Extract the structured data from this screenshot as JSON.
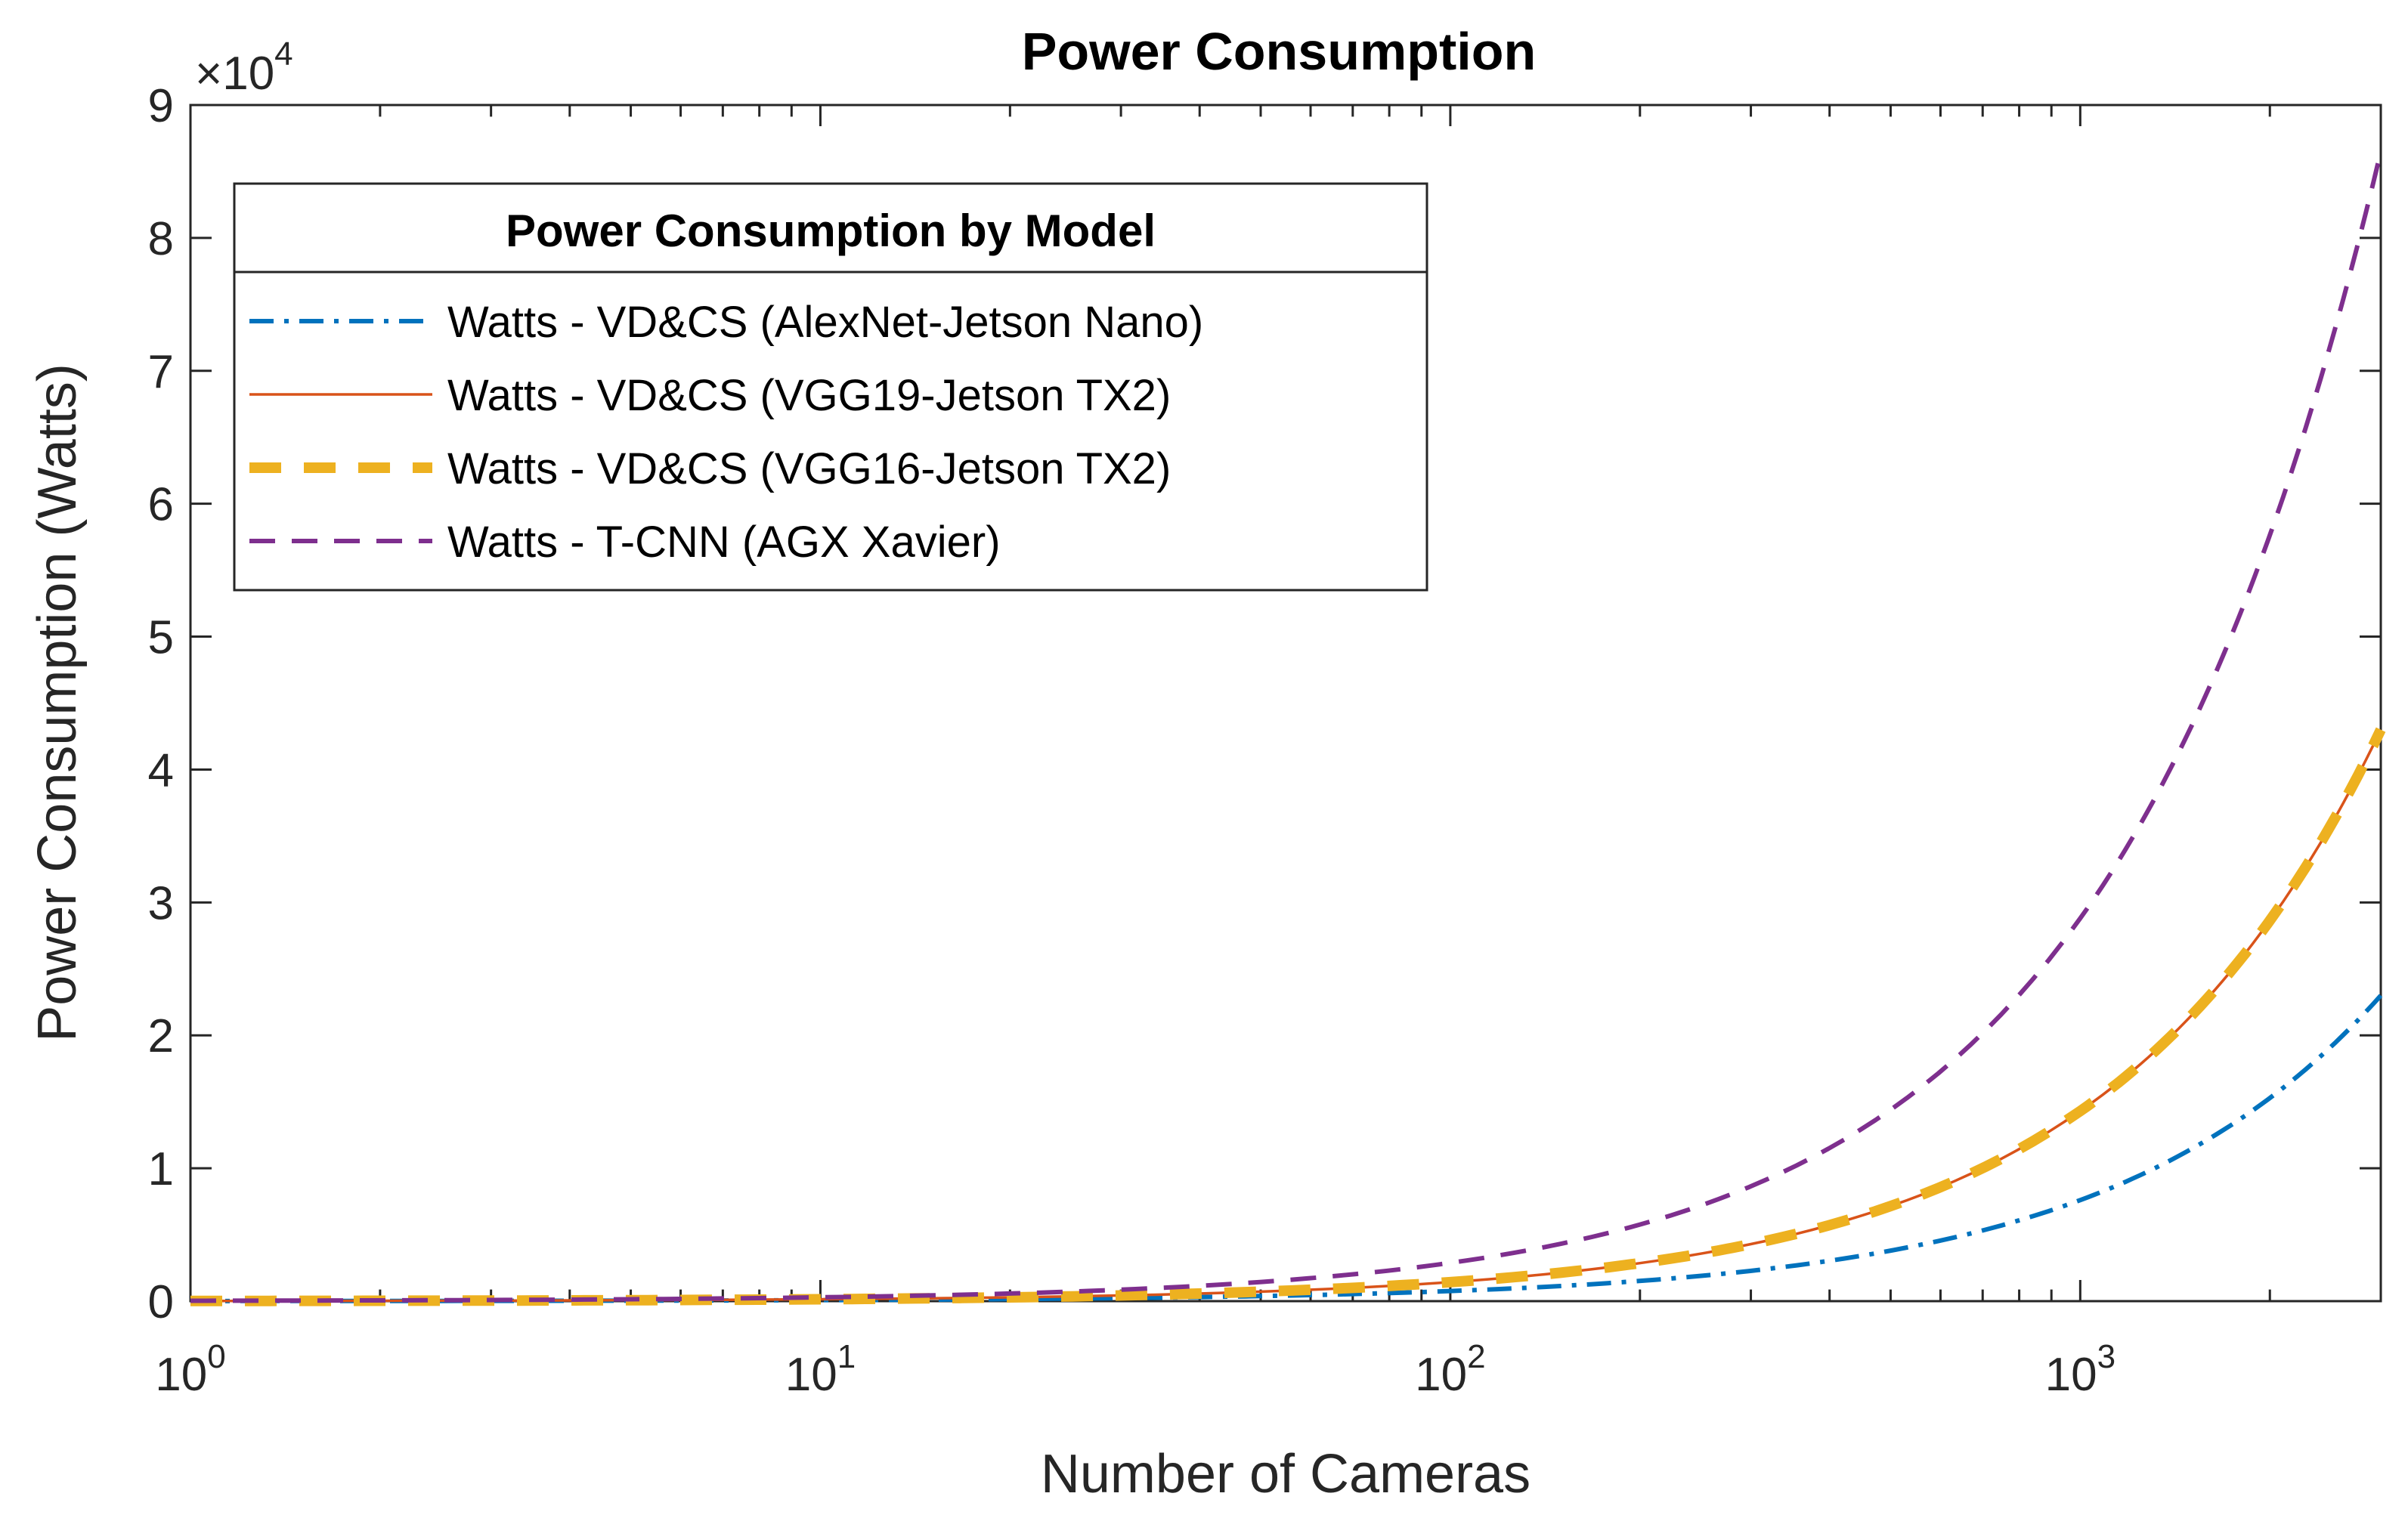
{
  "chart_data": {
    "type": "line",
    "title": "Power Consumption",
    "xlabel": "Number of Cameras",
    "ylabel": "Power Consumption (Watts)",
    "x_scale": "log",
    "xlim": [
      1,
      3000
    ],
    "ylim": [
      0,
      90000
    ],
    "y_multiplier_label": {
      "base": "×10",
      "exponent": "4"
    },
    "x_ticks": [
      {
        "value": 1,
        "base": "10",
        "exponent": "0"
      },
      {
        "value": 10,
        "base": "10",
        "exponent": "1"
      },
      {
        "value": 100,
        "base": "10",
        "exponent": "2"
      },
      {
        "value": 1000,
        "base": "10",
        "exponent": "3"
      }
    ],
    "y_ticks": [
      {
        "value": 0,
        "label": "0"
      },
      {
        "value": 10000,
        "label": "1"
      },
      {
        "value": 20000,
        "label": "2"
      },
      {
        "value": 30000,
        "label": "3"
      },
      {
        "value": 40000,
        "label": "4"
      },
      {
        "value": 50000,
        "label": "5"
      },
      {
        "value": 60000,
        "label": "6"
      },
      {
        "value": 70000,
        "label": "7"
      },
      {
        "value": 80000,
        "label": "8"
      },
      {
        "value": 90000,
        "label": "9"
      }
    ],
    "grid": false,
    "legend": {
      "title": "Power Consumption by Model",
      "placement": "top-left"
    },
    "series": [
      {
        "name": "Watts - VD&CS (AlexNet-Jetson Nano)",
        "color": "#0072BD",
        "style": "dash-dot",
        "x": [
          1,
          10,
          100,
          1000,
          3000
        ],
        "y": [
          7.6,
          76,
          760,
          7600,
          23000
        ]
      },
      {
        "name": "Watts - VD&CS (VGG19-Jetson TX2)",
        "color": "#D95319",
        "style": "solid",
        "x": [
          1,
          10,
          100,
          1000,
          3000
        ],
        "y": [
          14.3,
          143,
          1430,
          14300,
          43000
        ]
      },
      {
        "name": "Watts - VD&CS (VGG16-Jetson TX2)",
        "color": "#EDB120",
        "style": "thick-dashed",
        "x": [
          1,
          10,
          100,
          1000,
          3000
        ],
        "y": [
          14.3,
          143,
          1430,
          14300,
          43000
        ]
      },
      {
        "name": "Watts - T-CNN (AGX Xavier)",
        "color": "#7E2F8E",
        "style": "dashed",
        "x": [
          1,
          10,
          100,
          1000,
          3000
        ],
        "y": [
          28.8,
          288,
          2880,
          28800,
          86500
        ]
      }
    ]
  }
}
